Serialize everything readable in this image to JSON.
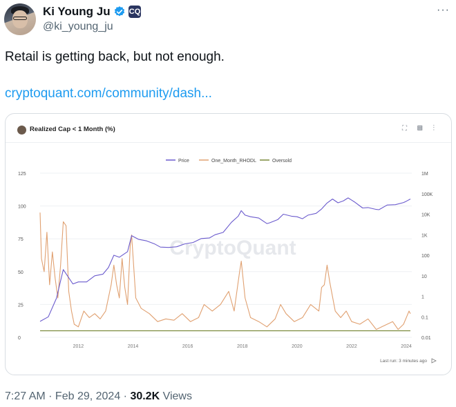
{
  "tweet": {
    "author_name": "Ki Young Ju",
    "handle": "@ki_young_ju",
    "badge_text": "CQ",
    "more_icon": "ellipsis-icon",
    "text": "Retail is getting back, but not enough.",
    "link_text": "cryptoquant.com/community/dash...",
    "time": "7:27 AM",
    "date": "Feb 29, 2024",
    "views_count": "30.2K",
    "views_label": "Views"
  },
  "card": {
    "title": "Realized Cap < 1 Month (%)",
    "last_run": "Last run: 3 minutes ago",
    "watermark": "CryptoQuant"
  },
  "colors": {
    "price": "#6a5acd",
    "rhodl": "#e0a070",
    "oversold": "#7a8a3a",
    "link": "#1d9bf0"
  },
  "chart_data": {
    "type": "line",
    "title": "Realized Cap < 1 Month (%)",
    "legend_position": "top-center",
    "grid": true,
    "x_ticks": [
      "2012",
      "2014",
      "2016",
      "2018",
      "2020",
      "2022",
      "2024"
    ],
    "xlim": [
      2010.6,
      2024.2
    ],
    "y_left_ticks": [
      "125",
      "100",
      "75",
      "50",
      "25",
      "0"
    ],
    "ylim_left": [
      0,
      125
    ],
    "y_right_ticks": [
      "1M",
      "100K",
      "10K",
      "1K",
      "100",
      "10",
      "1",
      "0.1",
      "0.01"
    ],
    "ylim_right": [
      0.01,
      1000000
    ],
    "y_right_scale": "log",
    "series": [
      {
        "name": "Price",
        "axis": "right",
        "x": [
          2010.6,
          2010.9,
          2011.2,
          2011.45,
          2011.6,
          2011.8,
          2012.0,
          2012.3,
          2012.6,
          2012.9,
          2013.1,
          2013.3,
          2013.5,
          2013.8,
          2013.95,
          2014.2,
          2014.5,
          2014.8,
          2015.0,
          2015.3,
          2015.6,
          2015.9,
          2016.2,
          2016.5,
          2016.8,
          2017.0,
          2017.3,
          2017.6,
          2017.85,
          2017.96,
          2018.1,
          2018.3,
          2018.6,
          2018.9,
          2019.0,
          2019.3,
          2019.5,
          2019.8,
          2020.0,
          2020.2,
          2020.4,
          2020.7,
          2020.9,
          2021.1,
          2021.3,
          2021.5,
          2021.7,
          2021.87,
          2022.1,
          2022.4,
          2022.6,
          2022.9,
          2023.0,
          2023.3,
          2023.6,
          2023.9,
          2024.0,
          2024.15
        ],
        "y": [
          0.06,
          0.1,
          0.8,
          20,
          10,
          4,
          5,
          5,
          10,
          12,
          25,
          100,
          80,
          150,
          900,
          600,
          500,
          350,
          250,
          240,
          260,
          360,
          420,
          650,
          700,
          1000,
          1300,
          4000,
          8000,
          15000,
          9000,
          7500,
          6500,
          3500,
          3800,
          5500,
          10000,
          8000,
          7500,
          6000,
          9000,
          11000,
          18000,
          35000,
          55000,
          36000,
          45000,
          62000,
          40000,
          20000,
          21000,
          17000,
          16500,
          28000,
          29000,
          37000,
          43000,
          55000
        ]
      },
      {
        "name": "One_Month_RHODL",
        "axis": "left",
        "x": [
          2010.6,
          2010.65,
          2010.75,
          2010.85,
          2010.95,
          2011.05,
          2011.15,
          2011.25,
          2011.35,
          2011.45,
          2011.55,
          2011.65,
          2011.75,
          2011.85,
          2012.0,
          2012.2,
          2012.4,
          2012.6,
          2012.8,
          2013.0,
          2013.2,
          2013.3,
          2013.4,
          2013.5,
          2013.6,
          2013.7,
          2013.8,
          2013.9,
          2013.95,
          2014.1,
          2014.3,
          2014.6,
          2014.9,
          2015.2,
          2015.5,
          2015.8,
          2016.1,
          2016.4,
          2016.6,
          2016.9,
          2017.2,
          2017.5,
          2017.7,
          2017.9,
          2017.96,
          2018.1,
          2018.3,
          2018.6,
          2018.9,
          2019.2,
          2019.4,
          2019.6,
          2019.9,
          2020.2,
          2020.5,
          2020.8,
          2020.9,
          2021.0,
          2021.1,
          2021.2,
          2021.4,
          2021.6,
          2021.8,
          2022.0,
          2022.3,
          2022.6,
          2022.9,
          2023.1,
          2023.3,
          2023.5,
          2023.7,
          2023.9,
          2024.1,
          2024.15
        ],
        "y": [
          95,
          60,
          50,
          80,
          40,
          65,
          45,
          30,
          55,
          88,
          85,
          35,
          20,
          10,
          8,
          20,
          15,
          18,
          14,
          20,
          40,
          55,
          40,
          30,
          60,
          38,
          25,
          70,
          78,
          30,
          22,
          18,
          12,
          14,
          13,
          18,
          12,
          15,
          25,
          20,
          25,
          35,
          20,
          50,
          58,
          30,
          15,
          12,
          8,
          14,
          25,
          18,
          12,
          15,
          25,
          20,
          38,
          40,
          55,
          42,
          20,
          15,
          20,
          12,
          10,
          14,
          6,
          8,
          10,
          12,
          6,
          10,
          20,
          18
        ]
      },
      {
        "name": "Oversold",
        "axis": "left",
        "x": [
          2010.6,
          2024.15
        ],
        "y": [
          5,
          5
        ]
      }
    ]
  }
}
